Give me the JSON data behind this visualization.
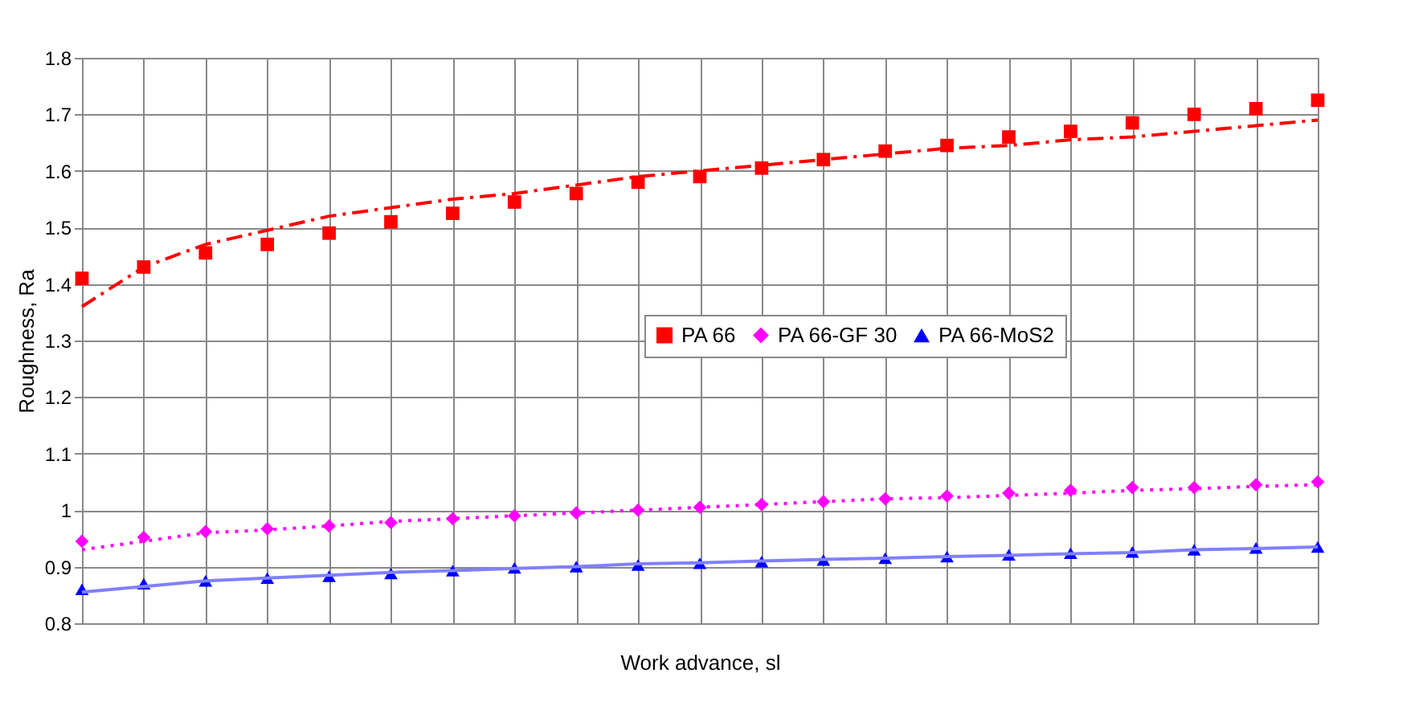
{
  "chart_data": {
    "type": "scatter",
    "xlabel": "Work advance, sl",
    "ylabel": "Roughness, Ra",
    "categories": [
      null,
      null,
      null,
      null,
      null,
      null,
      null,
      null,
      null,
      null,
      null,
      null,
      null,
      null,
      null,
      null,
      null,
      null,
      null,
      null,
      null
    ],
    "ylim": [
      0.8,
      1.8
    ],
    "yticks": [
      0.8,
      0.9,
      1,
      1.1,
      1.2,
      1.3,
      1.4,
      1.5,
      1.6,
      1.7,
      1.8
    ],
    "tick_labels": "y",
    "grid": true,
    "legend": "right",
    "series": [
      {
        "name": "PA 66",
        "color": "#ff0000",
        "marker": "square",
        "values": [
          1.41,
          1.43,
          1.455,
          1.47,
          1.49,
          1.51,
          1.525,
          1.545,
          1.56,
          1.58,
          1.59,
          1.605,
          1.62,
          1.635,
          1.645,
          1.66,
          1.67,
          1.685,
          1.7,
          1.71,
          1.725
        ]
      },
      {
        "name": "PA 66-GF 30",
        "color": "#ff00ff",
        "marker": "diamond",
        "values": [
          0.945,
          0.952,
          0.962,
          0.967,
          0.972,
          0.978,
          0.985,
          0.99,
          0.995,
          1.0,
          1.005,
          1.01,
          1.015,
          1.02,
          1.025,
          1.03,
          1.035,
          1.04,
          1.04,
          1.045,
          1.05
        ]
      },
      {
        "name": "PA 66-MoS2",
        "color": "#0000ff",
        "marker": "triangle",
        "values": [
          0.86,
          0.87,
          0.875,
          0.88,
          0.883,
          0.888,
          0.893,
          0.898,
          0.9,
          0.903,
          0.906,
          0.909,
          0.912,
          0.915,
          0.918,
          0.921,
          0.924,
          0.926,
          0.93,
          0.933,
          0.935
        ]
      },
      {
        "type": "line",
        "color": "#ff0000",
        "line_style": "dashed",
        "values": [
          1.36,
          1.43,
          1.47,
          1.495,
          1.52,
          1.535,
          1.55,
          1.56,
          1.575,
          1.59,
          1.6,
          1.61,
          1.62,
          1.63,
          1.64,
          1.645,
          1.655,
          1.66,
          1.67,
          1.68,
          1.69
        ]
      },
      {
        "type": "line",
        "color": "#ff00ff",
        "line_style": "dotted",
        "values": [
          0.93,
          0.945,
          0.96,
          0.965,
          0.972,
          0.98,
          0.985,
          0.99,
          0.995,
          1.0,
          1.005,
          1.01,
          1.015,
          1.02,
          1.022,
          1.026,
          1.03,
          1.035,
          1.038,
          1.042,
          1.045
        ]
      },
      {
        "type": "line",
        "color": "#8080ff",
        "line_style": "solid",
        "values": [
          0.855,
          0.865,
          0.875,
          0.88,
          0.885,
          0.89,
          0.893,
          0.897,
          0.9,
          0.905,
          0.907,
          0.91,
          0.913,
          0.915,
          0.918,
          0.92,
          0.923,
          0.925,
          0.93,
          0.932,
          0.935
        ]
      }
    ]
  }
}
